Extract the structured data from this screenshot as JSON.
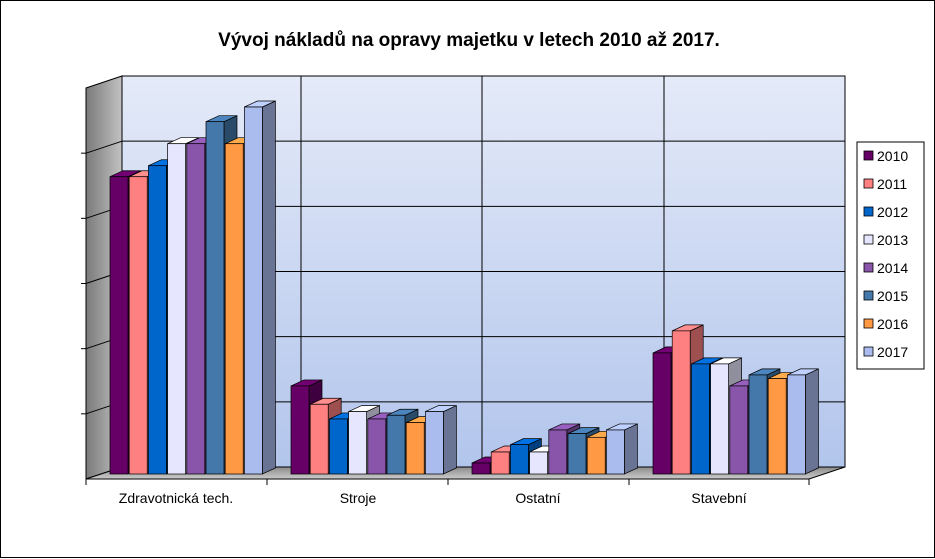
{
  "chart_data": {
    "type": "bar",
    "title": "Vývoj nákladů na opravy majetku v letech 2010 až 2017.",
    "xlabel": "",
    "ylabel": "",
    "ylim": [
      0,
      100
    ],
    "categories": [
      "Zdravotnická tech.",
      "Stroje",
      "Ostatní",
      "Stavební"
    ],
    "series": [
      {
        "name": "2010",
        "color": "#660066",
        "values": [
          81,
          24,
          3,
          33
        ]
      },
      {
        "name": "2011",
        "color": "#FF8080",
        "values": [
          81,
          19,
          6,
          39
        ]
      },
      {
        "name": "2012",
        "color": "#0066CC",
        "values": [
          84,
          15,
          8,
          30
        ]
      },
      {
        "name": "2013",
        "color": "#E6E6FF",
        "values": [
          90,
          17,
          6,
          30
        ]
      },
      {
        "name": "2014",
        "color": "#8855AA",
        "values": [
          90,
          15,
          12,
          24
        ]
      },
      {
        "name": "2015",
        "color": "#4477AA",
        "values": [
          96,
          16,
          11,
          27
        ]
      },
      {
        "name": "2016",
        "color": "#FF9944",
        "values": [
          90,
          14,
          10,
          26
        ]
      },
      {
        "name": "2017",
        "color": "#AABBEE",
        "values": [
          100,
          17,
          12,
          27
        ]
      }
    ],
    "legend_position": "right",
    "grid": true
  }
}
